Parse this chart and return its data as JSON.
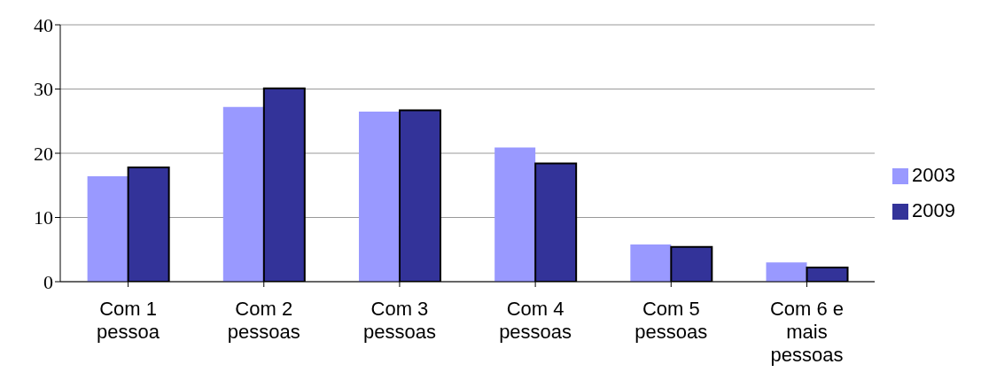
{
  "chart_data": {
    "type": "bar",
    "categories": [
      "Com 1 pessoa",
      "Com 2 pessoas",
      "Com 3 pessoas",
      "Com 4 pessoas",
      "Com 5 pessoas",
      "Com 6 e mais pessoas"
    ],
    "series": [
      {
        "name": "2003",
        "color": "#9999ff",
        "values": [
          16.4,
          27.2,
          26.5,
          20.9,
          5.8,
          3.0
        ]
      },
      {
        "name": "2009",
        "color": "#333399",
        "values": [
          17.8,
          30.1,
          26.7,
          18.4,
          5.4,
          2.2
        ]
      }
    ],
    "ylim": [
      0,
      40
    ],
    "yticks": [
      0,
      10,
      20,
      30,
      40
    ],
    "grid": "y",
    "legend": "right"
  }
}
